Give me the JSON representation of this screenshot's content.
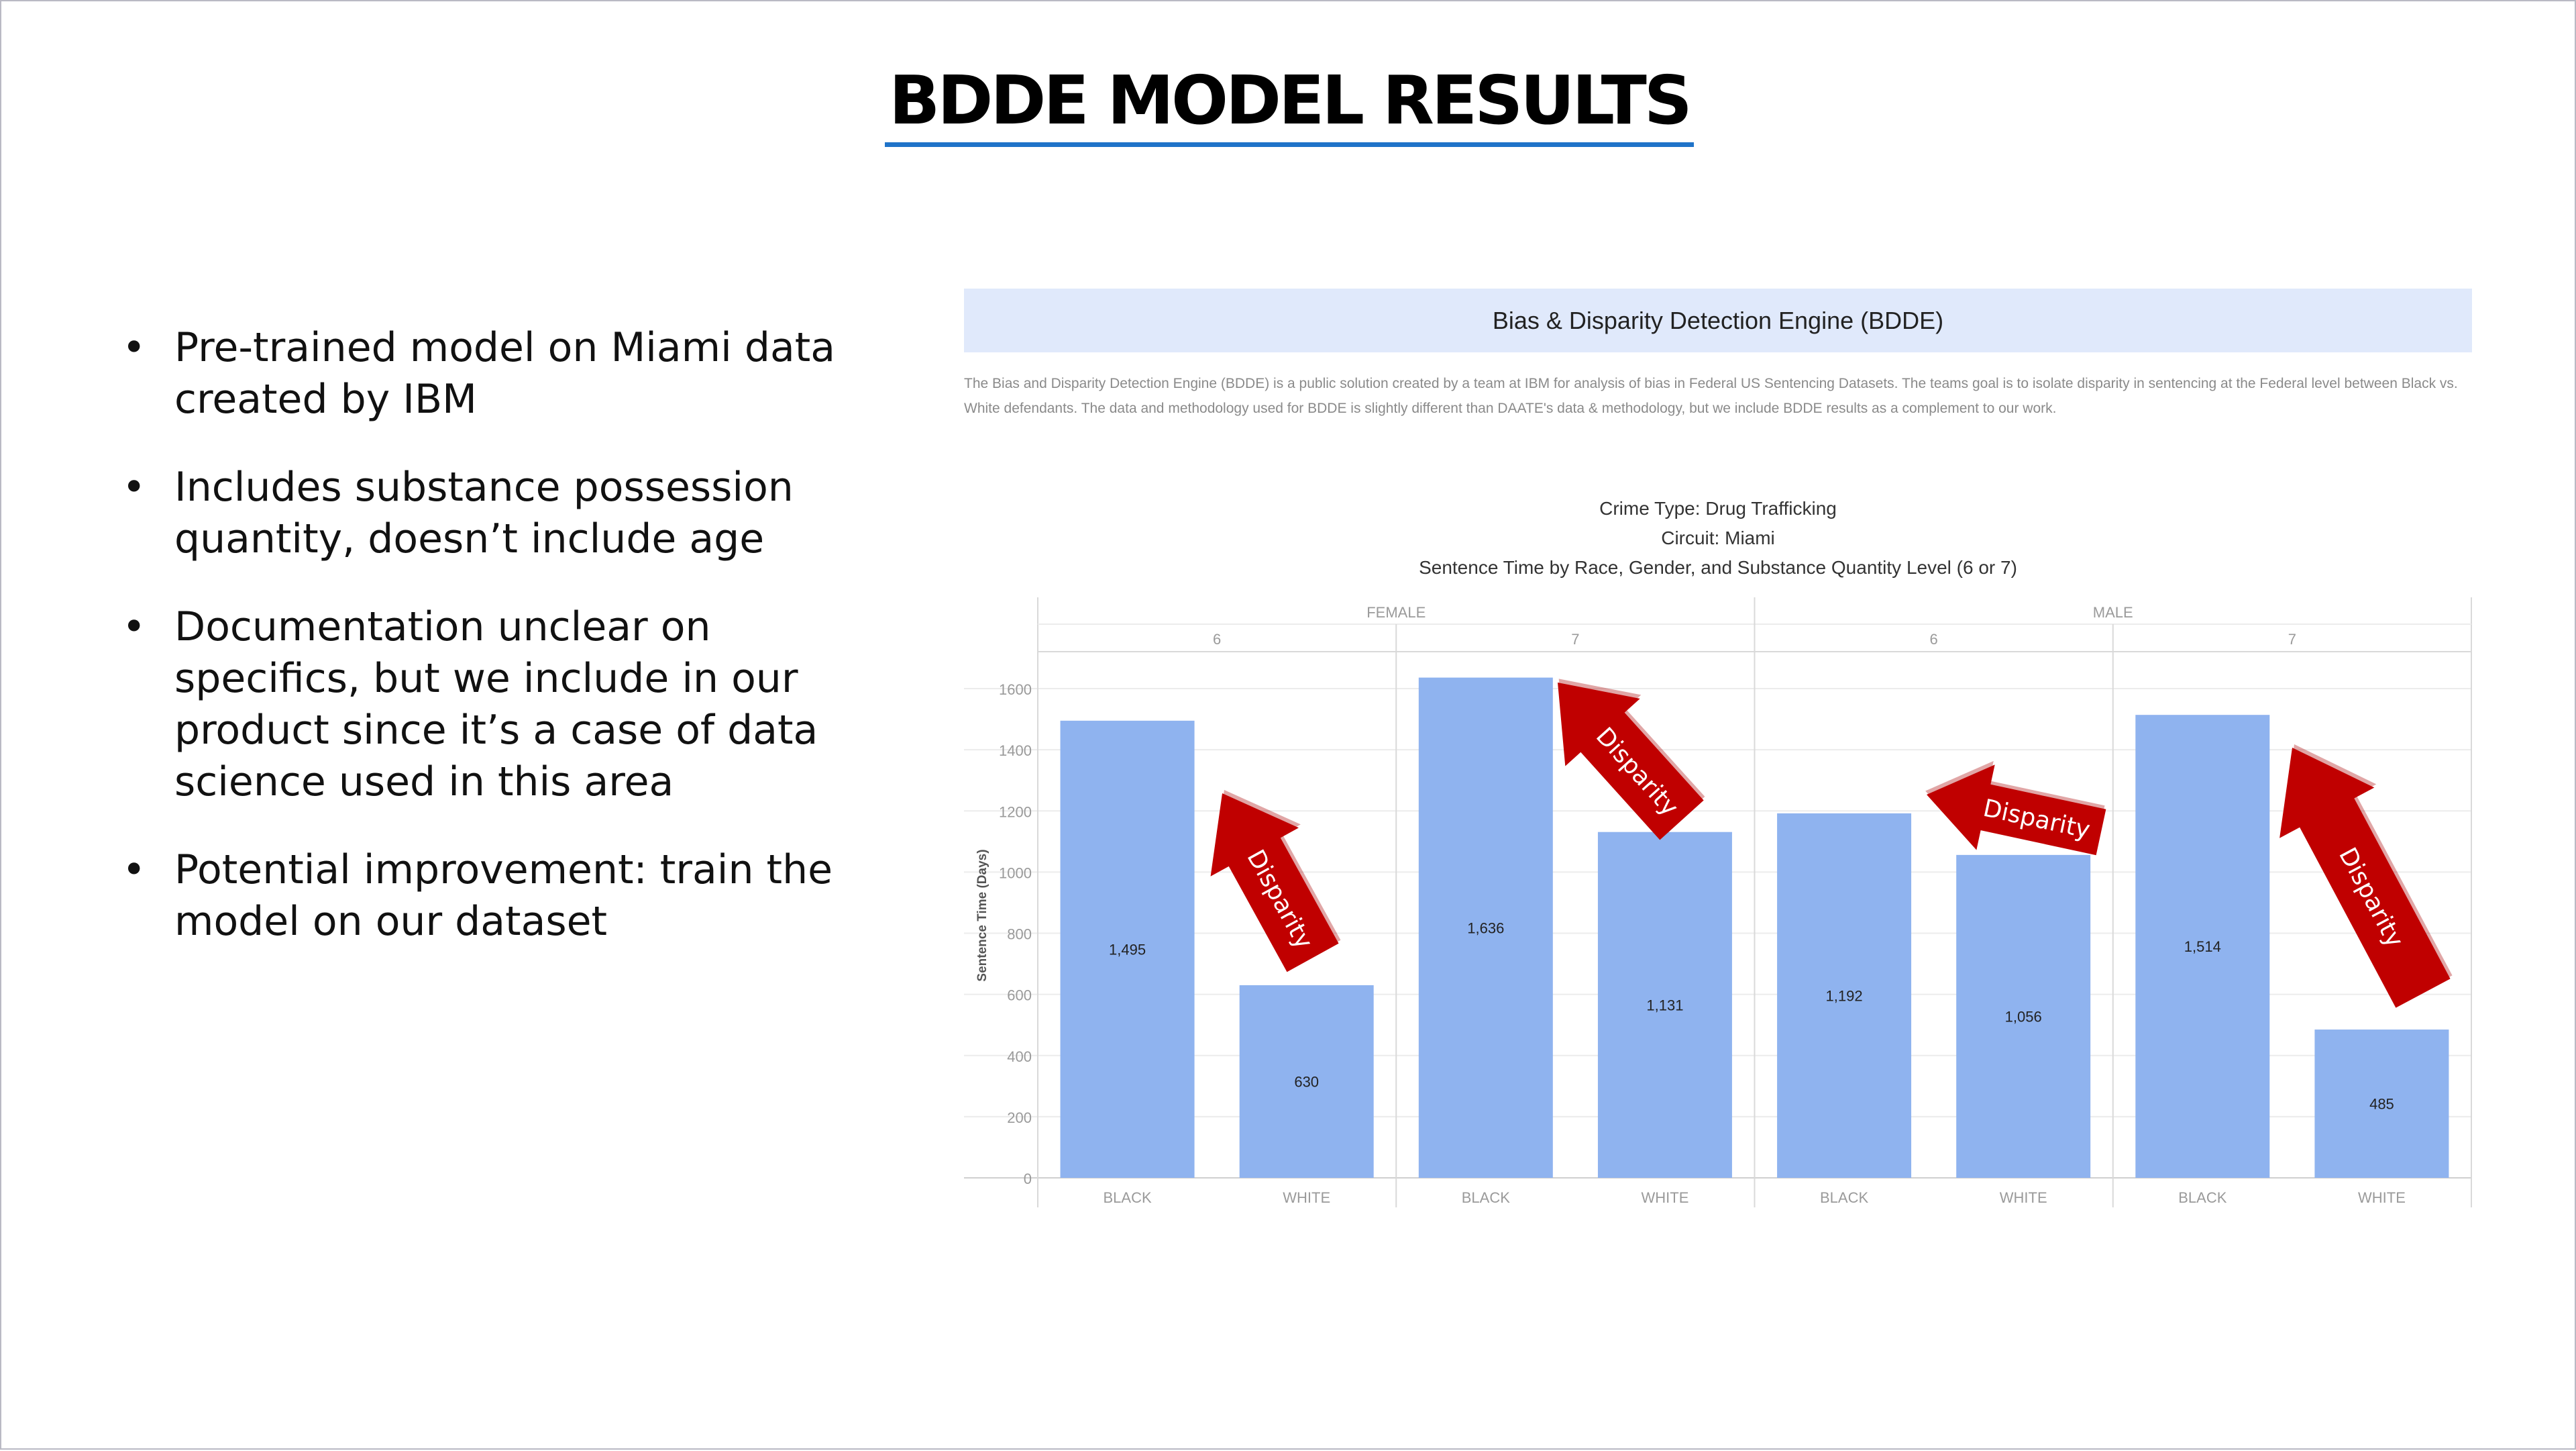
{
  "slide": {
    "title": "BDDE MODEL RESULTS",
    "bullets": [
      "Pre-trained model on Miami data created by IBM",
      "Includes substance possession quantity, doesn’t include age",
      "Documentation unclear on specifics, but we include in our product since it’s a case of data science used in this area",
      "Potential improvement: train the model on our dataset"
    ]
  },
  "bdde": {
    "banner_title": "Bias & Disparity Detection Engine (BDDE)",
    "description": "The Bias and Disparity Detection Engine (BDDE) is a public solution created by a team at IBM for analysis of bias in Federal US Sentencing Datasets. The teams goal is to isolate disparity in sentencing at the Federal level between Black vs. White defendants. The data and methodology used for BDDE is slightly different than DAATE's data & methodology, but we include BDDE results as a complement to our work."
  },
  "chart_data": {
    "type": "bar",
    "title_lines": [
      "Crime Type: Drug Trafficking",
      "Circuit: Miami",
      "Sentence Time by Race, Gender, and Substance Quantity Level (6 or 7)"
    ],
    "ylabel": "Sentence Time (Days)",
    "ylim": [
      0,
      1700
    ],
    "yticks": [
      0,
      200,
      400,
      600,
      800,
      1000,
      1200,
      1400,
      1600
    ],
    "grid": true,
    "genders": [
      "FEMALE",
      "MALE"
    ],
    "levels": [
      "6",
      "7",
      "6",
      "7"
    ],
    "bars": [
      {
        "gender": "FEMALE",
        "level": "6",
        "race": "BLACK",
        "value": 1495,
        "label": "1,495"
      },
      {
        "gender": "FEMALE",
        "level": "6",
        "race": "WHITE",
        "value": 630,
        "label": "630"
      },
      {
        "gender": "FEMALE",
        "level": "7",
        "race": "BLACK",
        "value": 1636,
        "label": "1,636"
      },
      {
        "gender": "FEMALE",
        "level": "7",
        "race": "WHITE",
        "value": 1131,
        "label": "1,131"
      },
      {
        "gender": "MALE",
        "level": "6",
        "race": "BLACK",
        "value": 1192,
        "label": "1,192"
      },
      {
        "gender": "MALE",
        "level": "6",
        "race": "WHITE",
        "value": 1056,
        "label": "1,056"
      },
      {
        "gender": "MALE",
        "level": "7",
        "race": "BLACK",
        "value": 1514,
        "label": "1,514"
      },
      {
        "gender": "MALE",
        "level": "7",
        "race": "WHITE",
        "value": 485,
        "label": "485"
      }
    ],
    "annotations": [
      "Disparity",
      "Disparity",
      "Disparity",
      "Disparity"
    ],
    "colors": {
      "bar": "#8fb3ef",
      "arrow": "#c00000",
      "axis": "#9a9a9a",
      "grid": "#ececec"
    }
  }
}
